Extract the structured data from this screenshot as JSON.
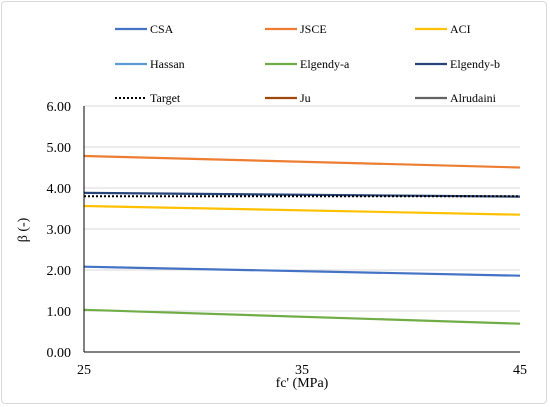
{
  "chart_data": {
    "type": "line",
    "xlabel": "fc' (MPa)",
    "ylabel": "β (-)",
    "xlim": [
      25,
      45
    ],
    "ylim": [
      0,
      6
    ],
    "x_ticks": [
      "25",
      "35",
      "45"
    ],
    "y_ticks": [
      "0.00",
      "1.00",
      "2.00",
      "3.00",
      "4.00",
      "5.00",
      "6.00"
    ],
    "grid": "horizontal",
    "legend_position": "top",
    "x": [
      25,
      45
    ],
    "series": [
      {
        "name": "CSA",
        "values": [
          2.08,
          1.86
        ],
        "color": "#4472c4",
        "dash": "solid"
      },
      {
        "name": "JSCE",
        "values": [
          4.78,
          4.5
        ],
        "color": "#ed7d31",
        "dash": "solid"
      },
      {
        "name": "ACI",
        "values": [
          3.56,
          3.35
        ],
        "color": "#ffc000",
        "dash": "solid"
      },
      {
        "name": "Hassan",
        "values": [
          null,
          null
        ],
        "color": "#5b9bd5",
        "dash": "solid"
      },
      {
        "name": "Elgendy-a",
        "values": [
          1.03,
          0.69
        ],
        "color": "#70ad47",
        "dash": "solid"
      },
      {
        "name": "Elgendy-b",
        "values": [
          3.88,
          3.79
        ],
        "color": "#264478",
        "dash": "solid"
      },
      {
        "name": "Target",
        "values": [
          3.8,
          3.8
        ],
        "color": "#000000",
        "dash": "dotted"
      },
      {
        "name": "Ju",
        "values": [
          null,
          null
        ],
        "color": "#9e480e",
        "dash": "solid"
      },
      {
        "name": "Alrudaini",
        "values": [
          null,
          null
        ],
        "color": "#636363",
        "dash": "solid"
      }
    ]
  }
}
